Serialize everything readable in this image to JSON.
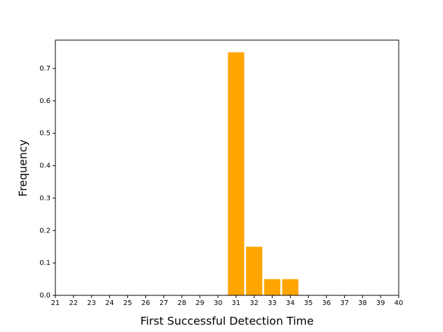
{
  "chart_data": {
    "type": "bar",
    "xlabel": "First Successful Detection Time",
    "ylabel": "Frequency",
    "x": [
      31,
      32,
      33,
      34
    ],
    "values": [
      0.75,
      0.15,
      0.05,
      0.05
    ],
    "color": "#ffa500",
    "xlim": [
      21,
      40
    ],
    "xticks": [
      21,
      22,
      23,
      24,
      25,
      26,
      27,
      28,
      29,
      30,
      31,
      32,
      33,
      34,
      35,
      36,
      37,
      38,
      39,
      40
    ],
    "ylim": [
      0,
      0.7875
    ],
    "yticks": [
      {
        "value": 0,
        "label": "0.0"
      },
      0.1,
      0.2,
      0.3,
      0.4,
      0.5,
      0.6,
      0.7
    ],
    "grid": false
  }
}
